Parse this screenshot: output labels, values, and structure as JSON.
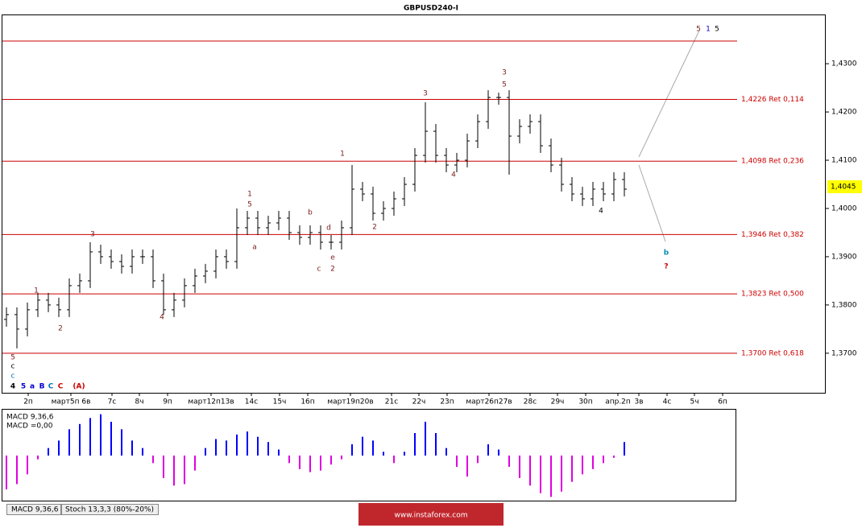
{
  "chart_data": {
    "type": "ohlc",
    "title": "GBPUSD240-I",
    "ylim": [
      1.3618,
      1.4402
    ],
    "yticks": [
      {
        "value": 1.43,
        "label": "1,4300"
      },
      {
        "value": 1.42,
        "label": "1,4200"
      },
      {
        "value": 1.41,
        "label": "1,4100"
      },
      {
        "value": 1.4,
        "label": "1,4000"
      },
      {
        "value": 1.39,
        "label": "1,3900"
      },
      {
        "value": 1.38,
        "label": "1,3800"
      },
      {
        "value": 1.37,
        "label": "1,3700"
      }
    ],
    "current_price": {
      "value": 1.4045,
      "label": "1,4045"
    },
    "x_labels": [
      "2п",
      "март5п 6в",
      "7с",
      "8ч",
      "9п",
      "март12п13в",
      "14с",
      "15ч",
      "16п",
      "март19п20в",
      "21с",
      "22ч",
      "23п",
      "март26п27в",
      "28с",
      "29ч",
      "30п",
      "апр.2п",
      "3в",
      "4с",
      "5ч",
      "6п"
    ],
    "open": [
      1.377,
      1.378,
      1.375,
      1.379,
      1.381,
      1.38,
      1.379,
      1.384,
      1.385,
      1.391,
      1.39,
      1.389,
      1.388,
      1.39,
      1.39,
      1.385,
      1.379,
      1.381,
      1.384,
      1.386,
      1.387,
      1.39,
      1.389,
      1.396,
      1.398,
      1.396,
      1.397,
      1.398,
      1.395,
      1.394,
      1.395,
      1.393,
      1.393,
      1.396,
      1.404,
      1.403,
      1.399,
      1.4,
      1.402,
      1.405,
      1.411,
      1.416,
      1.411,
      1.409,
      1.41,
      1.414,
      1.418,
      1.423,
      1.423,
      1.415,
      1.417,
      1.418,
      1.413,
      1.409,
      1.405,
      1.403,
      1.402,
      1.404,
      1.403,
      1.406
    ],
    "high": [
      1.3795,
      1.3795,
      1.3805,
      1.3825,
      1.3825,
      1.3815,
      1.3855,
      1.3865,
      1.393,
      1.3925,
      1.3915,
      1.3905,
      1.3915,
      1.3915,
      1.3915,
      1.3865,
      1.3825,
      1.3855,
      1.3875,
      1.3885,
      1.3915,
      1.3915,
      1.4,
      1.3995,
      1.3995,
      1.3985,
      1.3995,
      1.3995,
      1.3965,
      1.3965,
      1.3965,
      1.3945,
      1.3975,
      1.409,
      1.4055,
      1.4045,
      1.4015,
      1.4035,
      1.4065,
      1.4125,
      1.422,
      1.4175,
      1.4125,
      1.4115,
      1.4155,
      1.4195,
      1.4245,
      1.424,
      1.4245,
      1.4185,
      1.4195,
      1.4195,
      1.4145,
      1.4105,
      1.4065,
      1.4045,
      1.4055,
      1.4055,
      1.4075,
      1.4075
    ],
    "low": [
      1.3755,
      1.371,
      1.3735,
      1.3775,
      1.3785,
      1.3775,
      1.3775,
      1.3825,
      1.3835,
      1.3885,
      1.3875,
      1.3865,
      1.3865,
      1.3885,
      1.3835,
      1.378,
      1.3775,
      1.3795,
      1.3825,
      1.3845,
      1.3855,
      1.3875,
      1.3875,
      1.3945,
      1.3945,
      1.3945,
      1.3955,
      1.3935,
      1.3925,
      1.3925,
      1.3915,
      1.3915,
      1.3915,
      1.3945,
      1.4015,
      1.3975,
      1.3975,
      1.3985,
      1.4005,
      1.4035,
      1.4095,
      1.4095,
      1.4075,
      1.4075,
      1.4085,
      1.4125,
      1.4165,
      1.4215,
      1.407,
      1.4135,
      1.4155,
      1.4115,
      1.4075,
      1.4035,
      1.4015,
      1.4005,
      1.4005,
      1.4015,
      1.4015,
      1.4025
    ],
    "close": [
      1.378,
      1.375,
      1.379,
      1.381,
      1.38,
      1.379,
      1.384,
      1.385,
      1.391,
      1.39,
      1.389,
      1.388,
      1.39,
      1.39,
      1.385,
      1.379,
      1.381,
      1.384,
      1.386,
      1.387,
      1.39,
      1.389,
      1.396,
      1.398,
      1.396,
      1.397,
      1.398,
      1.395,
      1.394,
      1.395,
      1.393,
      1.393,
      1.396,
      1.404,
      1.403,
      1.399,
      1.4,
      1.402,
      1.405,
      1.411,
      1.416,
      1.411,
      1.409,
      1.41,
      1.414,
      1.418,
      1.423,
      1.423,
      1.415,
      1.417,
      1.418,
      1.413,
      1.409,
      1.405,
      1.403,
      1.402,
      1.404,
      1.403,
      1.406,
      1.404
    ],
    "bar_color": "#000000",
    "top_line": 1.4347,
    "levels": [
      {
        "value": 1.4226,
        "label": "1,4226 Ret 0,114"
      },
      {
        "value": 1.4098,
        "label": "1,4098 Ret 0,236"
      },
      {
        "value": 1.3946,
        "label": "1,3946 Ret 0,382"
      },
      {
        "value": 1.3823,
        "label": "1,3823 Ret 0,500"
      },
      {
        "value": 1.37,
        "label": "1,3700 Ret 0,618"
      }
    ],
    "level_color": "#cc0000",
    "annotations": [
      "5",
      "c",
      "c",
      "4",
      "5",
      "a",
      "B",
      "C",
      "C",
      "(A)",
      "1",
      "2",
      "3",
      "4",
      "a",
      "1",
      "5",
      "b",
      "d",
      "e",
      "c",
      "2",
      "1",
      "2",
      "3",
      "4",
      "3",
      "5",
      "4",
      "5",
      "1",
      "5",
      "b",
      "?"
    ],
    "macd": {
      "label": "MACD 9,36,6",
      "value_label": "MACD =0,00",
      "ylim": [
        -60,
        60
      ],
      "values": [
        -45,
        -38,
        -25,
        -5,
        10,
        20,
        35,
        42,
        50,
        55,
        45,
        35,
        20,
        10,
        -10,
        -30,
        -40,
        -38,
        -20,
        10,
        22,
        20,
        28,
        32,
        25,
        18,
        8,
        -10,
        -18,
        -22,
        -20,
        -12,
        -5,
        15,
        25,
        20,
        5,
        -10,
        5,
        30,
        45,
        30,
        10,
        -15,
        -28,
        -10,
        15,
        8,
        -15,
        -30,
        -40,
        -50,
        -55,
        -48,
        -35,
        -25,
        -18,
        -10,
        -3,
        18
      ],
      "up_color": "#0000ff",
      "down_color": "#e000e0"
    },
    "tabs": [
      "MACD 9,36,6",
      "Stoch 13,3,3 (80%-20%)"
    ],
    "watermark": "www.instaforex.com"
  }
}
